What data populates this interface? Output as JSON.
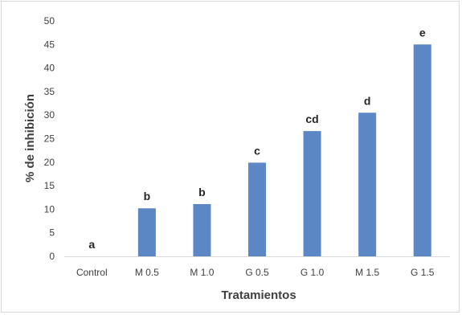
{
  "chart_data": {
    "type": "bar",
    "title": "",
    "xlabel": "Tratamientos",
    "ylabel": "% de inhibición",
    "ylim": [
      0,
      50
    ],
    "yticks": [
      0,
      5,
      10,
      15,
      20,
      25,
      30,
      35,
      40,
      45,
      50
    ],
    "grid": false,
    "categories": [
      "Control",
      "M 0.5",
      "M 1.0",
      "G 0.5",
      "G 1.0",
      "M 1.5",
      "G 1.5"
    ],
    "values": [
      0,
      10.2,
      11.1,
      19.9,
      26.6,
      30.5,
      45.0
    ],
    "significance_labels": [
      "a",
      "b",
      "b",
      "c",
      "cd",
      "d",
      "e"
    ],
    "bar_color": "#5b88c4",
    "axis_color": "#d9d9d9",
    "text_color": "#404040"
  }
}
